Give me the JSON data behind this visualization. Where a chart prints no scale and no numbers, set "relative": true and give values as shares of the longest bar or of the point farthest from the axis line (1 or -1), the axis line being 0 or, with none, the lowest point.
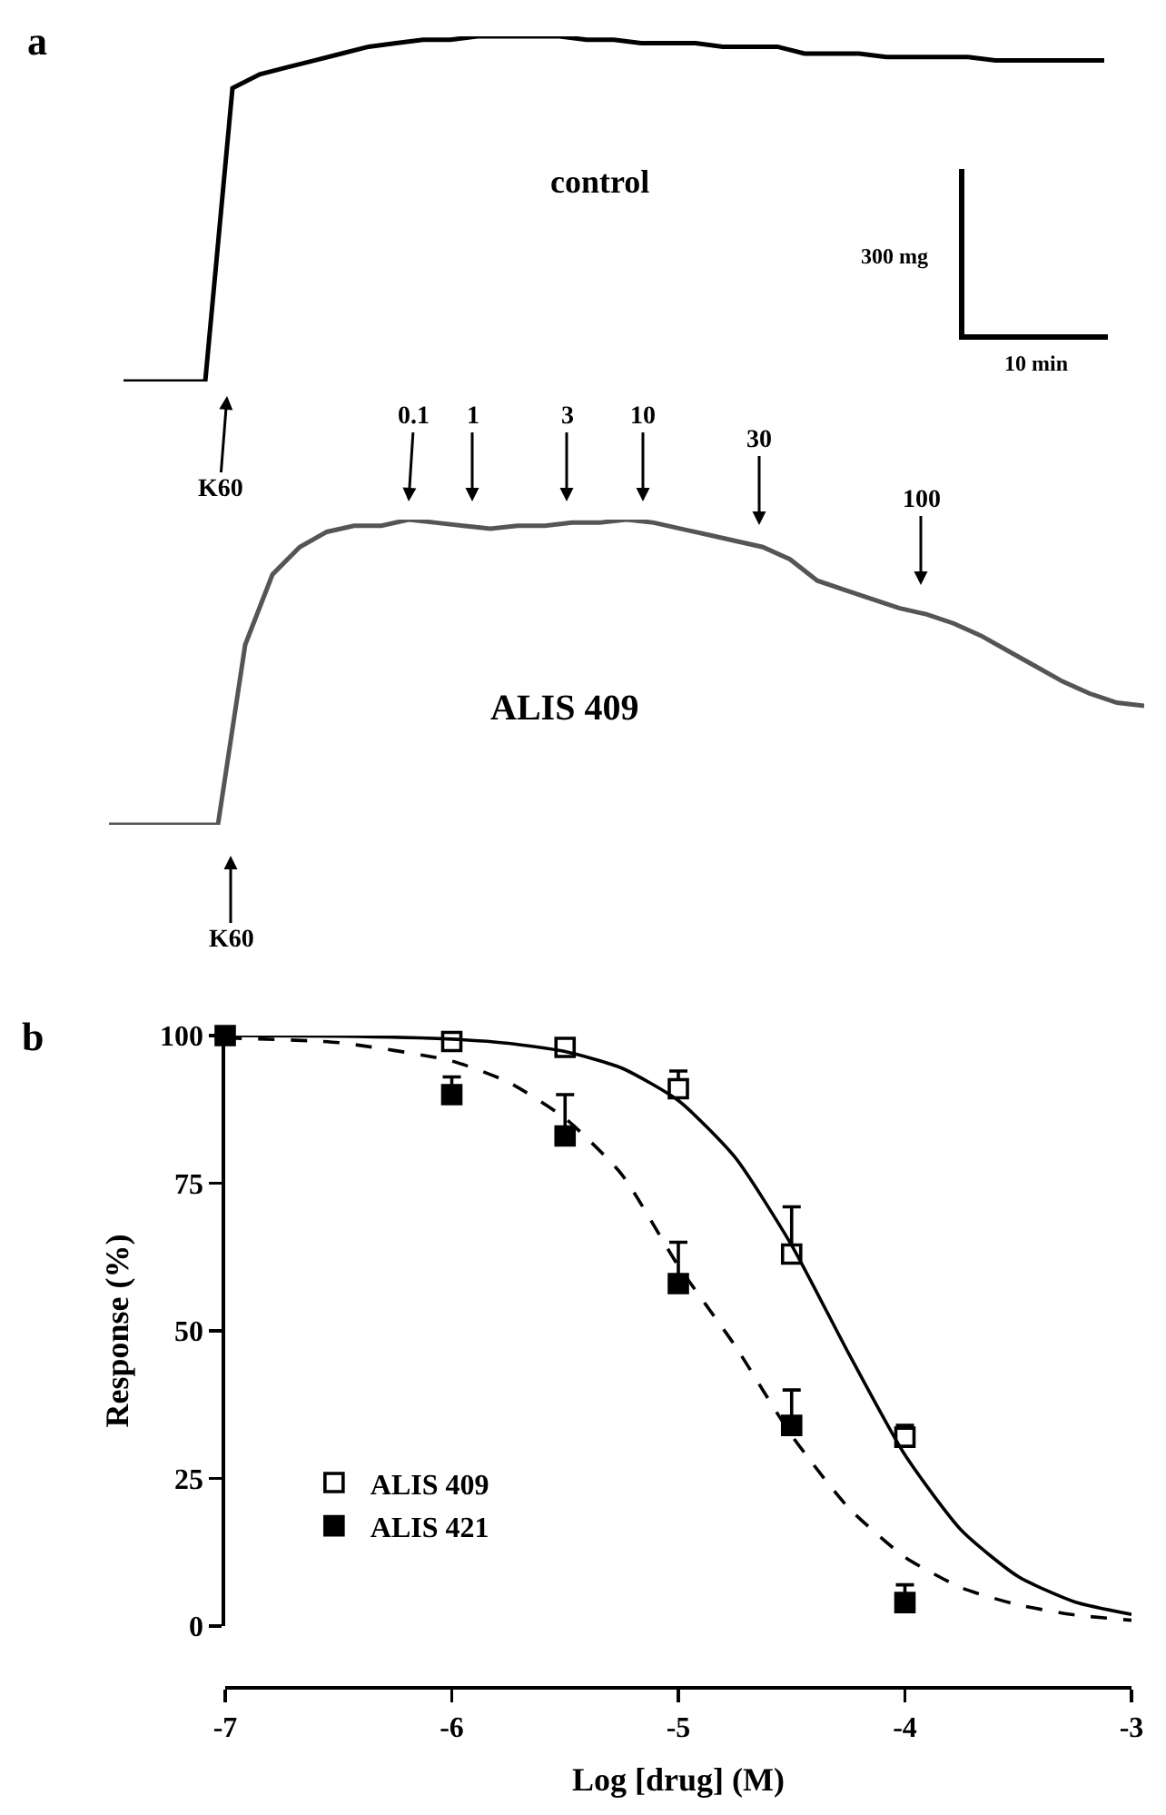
{
  "chart_data": [
    {
      "type": "line",
      "relative": true,
      "categories": [
        null,
        null,
        null,
        null,
        null,
        null,
        null,
        null,
        null,
        null,
        null,
        null,
        null,
        null,
        null,
        null,
        null,
        null,
        null,
        null,
        null,
        null,
        null,
        null,
        null,
        null,
        null,
        null,
        null,
        null,
        null,
        null,
        null,
        null,
        null,
        null,
        null
      ],
      "series": [
        {
          "name": "control",
          "color": "#000000",
          "values": [
            0,
            0,
            0,
            0,
            0.85,
            0.89,
            0.91,
            0.93,
            0.95,
            0.97,
            0.98,
            0.99,
            0.99,
            1,
            1,
            1,
            1,
            0.99,
            0.99,
            0.98,
            0.98,
            0.98,
            0.97,
            0.97,
            0.97,
            0.95,
            0.95,
            0.95,
            0.94,
            0.94,
            0.94,
            0.94,
            0.93,
            0.93,
            0.93,
            0.93,
            0.93
          ]
        }
      ],
      "annotations": [
        "a",
        "300 mg",
        "10 min",
        "K60"
      ]
    },
    {
      "type": "line",
      "relative": true,
      "categories": [
        null,
        null,
        null,
        null,
        null,
        null,
        null,
        null,
        null,
        null,
        null,
        null,
        null,
        null,
        null,
        null,
        null,
        null,
        null,
        null,
        null,
        null,
        null,
        null,
        null,
        null,
        null,
        null,
        null,
        null,
        null,
        null,
        null,
        null,
        null,
        null,
        null,
        null,
        null
      ],
      "series": [
        {
          "name": "ALIS 409",
          "color": "#555555",
          "values": [
            0,
            0,
            0,
            0,
            0,
            0.59,
            0.82,
            0.91,
            0.96,
            0.98,
            0.98,
            1,
            0.99,
            0.98,
            0.97,
            0.98,
            0.98,
            0.99,
            0.99,
            1,
            0.99,
            0.97,
            0.95,
            0.93,
            0.91,
            0.87,
            0.8,
            0.77,
            0.74,
            0.71,
            0.69,
            0.66,
            0.62,
            0.57,
            0.52,
            0.47,
            0.43,
            0.4,
            0.39
          ]
        }
      ],
      "annotations": [
        "K60",
        "0.1",
        "1",
        "3",
        "10",
        "30",
        "100"
      ]
    },
    {
      "type": "scatter",
      "xlabel": "Log [drug] (M)",
      "ylabel": "Response (%)",
      "xlim": [
        -7,
        -3
      ],
      "ylim": [
        0,
        100
      ],
      "xticks": [
        -7,
        -6,
        -5,
        -4,
        -3
      ],
      "yticks": [
        0,
        25,
        50,
        75,
        100
      ],
      "legend": "bottom left",
      "annotations": [
        "b"
      ],
      "series": [
        {
          "name": "ALIS 409",
          "type": "scatter",
          "marker": "square",
          "color": "#ffffff",
          "x": [
            -6,
            -5.5,
            -5,
            -4.5,
            -4
          ],
          "values": [
            99,
            98,
            91,
            63,
            32
          ],
          "errors": [
            null,
            null,
            [
              91,
              94
            ],
            [
              63,
              71
            ],
            [
              32,
              34
            ]
          ]
        },
        {
          "name": "ALIS 421",
          "type": "scatter",
          "marker": "square",
          "color": "#000000",
          "x": [
            -7,
            -6,
            -5.5,
            -5,
            -4.5,
            -4
          ],
          "values": [
            100,
            90,
            83,
            58,
            34,
            4
          ],
          "errors": [
            null,
            [
              90,
              93
            ],
            [
              83,
              90
            ],
            [
              58,
              65
            ],
            [
              34,
              40
            ],
            [
              4,
              7
            ]
          ]
        },
        {
          "type": "line",
          "marker": "none",
          "line_style": "solid",
          "color": "#000000",
          "x": [
            -7,
            -6.5,
            -6,
            -5.75,
            -5.5,
            -5.25,
            -5,
            -4.75,
            -4.5,
            -4.25,
            -4,
            -3.75,
            -3.5,
            -3.25,
            -3
          ],
          "values": [
            100,
            99.9,
            99.4,
            98.7,
            97.3,
            94.5,
            89,
            79.4,
            64.5,
            46.3,
            29,
            16.2,
            8.4,
            4.1,
            2
          ]
        },
        {
          "type": "line",
          "marker": "none",
          "line_style": "dashed",
          "color": "#000000",
          "x": [
            -7,
            -6.5,
            -6,
            -5.75,
            -5.5,
            -5.25,
            -5,
            -4.75,
            -4.5,
            -4.25,
            -4,
            -3.75,
            -3.5,
            -3.25,
            -3
          ],
          "values": [
            99.6,
            98.8,
            95.7,
            92.1,
            86,
            76.5,
            61,
            47.5,
            32.3,
            20.1,
            11.7,
            6.5,
            3.6,
            1.9,
            1
          ]
        }
      ]
    }
  ]
}
